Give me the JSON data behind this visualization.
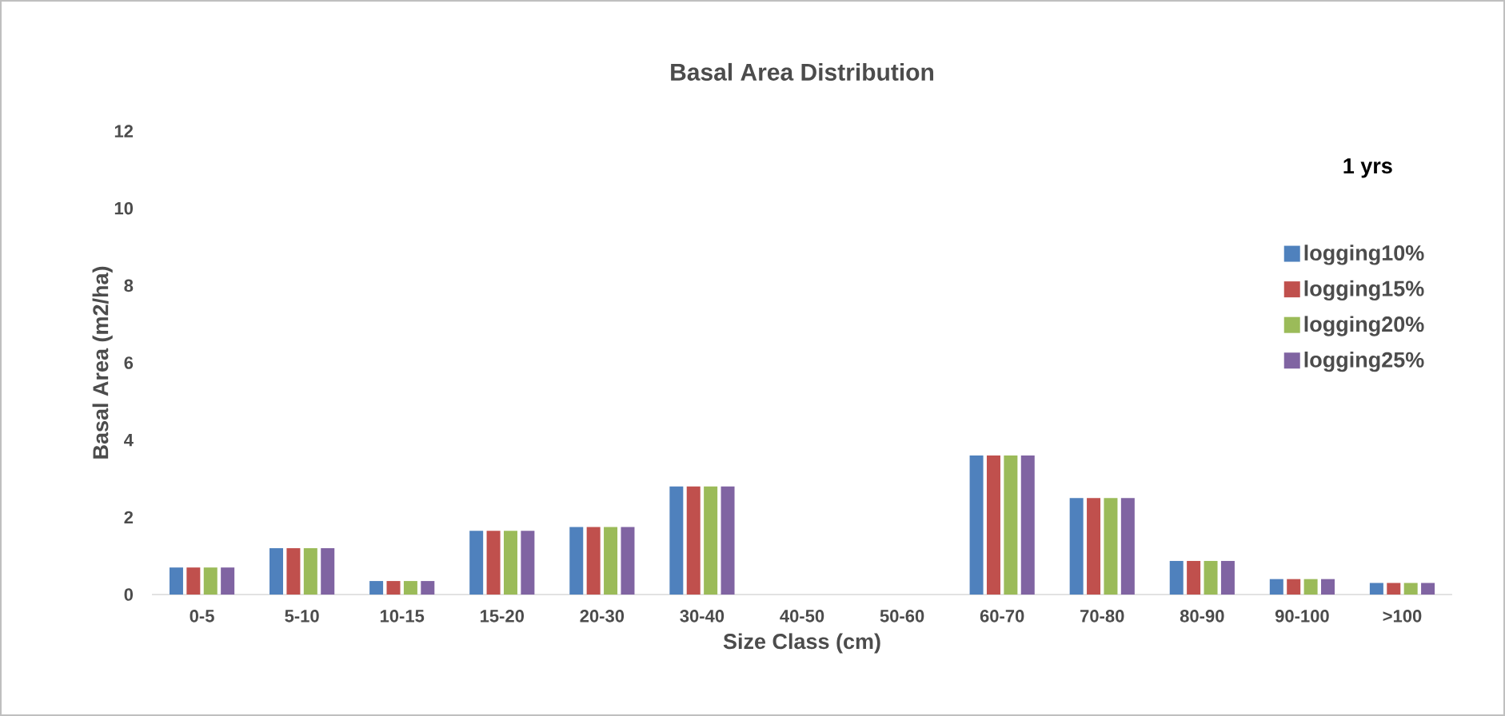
{
  "chart_data": {
    "type": "bar",
    "title": "Basal Area Distribution",
    "xlabel": "Size Class (cm)",
    "ylabel": "Basal Area (m2/ha)",
    "categories": [
      "0-5",
      "5-10",
      "10-15",
      "15-20",
      "20-30",
      "30-40",
      "40-50",
      "50-60",
      "60-70",
      "70-80",
      "80-90",
      "90-100",
      ">100"
    ],
    "series": [
      {
        "name": "logging10%",
        "color": "#4f81bd",
        "values": [
          0.7,
          1.2,
          0.35,
          1.65,
          1.75,
          2.8,
          0,
          0,
          3.6,
          2.5,
          0.87,
          0.4,
          0.3
        ]
      },
      {
        "name": "logging15%",
        "color": "#c0504d",
        "values": [
          0.7,
          1.2,
          0.35,
          1.65,
          1.75,
          2.8,
          0,
          0,
          3.6,
          2.5,
          0.87,
          0.4,
          0.3
        ]
      },
      {
        "name": "logging20%",
        "color": "#9bbb59",
        "values": [
          0.7,
          1.2,
          0.35,
          1.65,
          1.75,
          2.8,
          0,
          0,
          3.6,
          2.5,
          0.87,
          0.4,
          0.3
        ]
      },
      {
        "name": "logging25%",
        "color": "#8064a2",
        "values": [
          0.7,
          1.2,
          0.35,
          1.65,
          1.75,
          2.8,
          0,
          0,
          3.6,
          2.5,
          0.87,
          0.4,
          0.3
        ]
      }
    ],
    "ylim": [
      0,
      12
    ],
    "yticks": [
      0,
      2,
      4,
      6,
      8,
      10,
      12
    ],
    "legend": "right",
    "annotations": [
      "1 yrs"
    ]
  }
}
